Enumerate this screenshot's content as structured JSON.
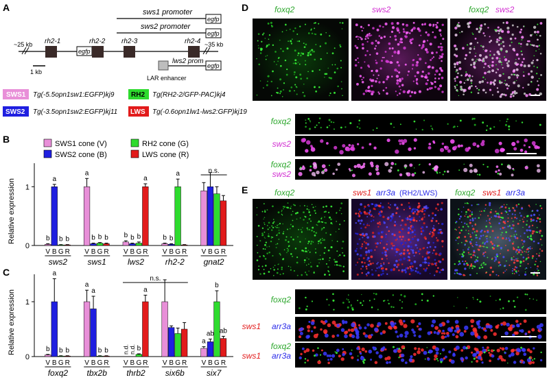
{
  "panel_labels": {
    "A": "A",
    "B": "B",
    "C": "C",
    "D": "D",
    "E": "E"
  },
  "colors": {
    "sws1": "#e88fd8",
    "sws2": "#1f1fe0",
    "rh2": "#2edb2e",
    "lws": "#e21b1b",
    "foxq2": "#2ee02e",
    "sws2_gene": "#e63ce6",
    "arr3a": "#2b2be8"
  },
  "panel_a": {
    "promoters": [
      "sws1 promoter",
      "sws2 promoter"
    ],
    "egfp": "egfp",
    "kb_left": "~25 kb",
    "kb_right": "~35 kb",
    "genes": [
      "rh2-1",
      "rh2-2",
      "rh2-3",
      "rh2-4"
    ],
    "scale": "1 kb",
    "lws2_prom": "lws2 prom",
    "lar": "LAR enhancer",
    "legend": [
      {
        "badge": "SWS1",
        "text": "Tg(-5.5opn1sw1:EGFP)kj9"
      },
      {
        "badge": "RH2",
        "text": "Tg(RH2-2/GFP-PAC)kj4"
      },
      {
        "badge": "SWS2",
        "text": "Tg(-3.5opn1sw2:EGFP)kj11"
      },
      {
        "badge": "LWS",
        "text": "Tg(-0.6opn1lw1-lws2:GFP)kj19"
      }
    ]
  },
  "legend_bc": [
    {
      "label": "SWS1 cone (V)"
    },
    {
      "label": "SWS2 cone (B)"
    },
    {
      "label": "RH2 cone (G)"
    },
    {
      "label": "LWS cone (R)"
    }
  ],
  "axis": {
    "ylabel": "Relative expression",
    "ticks": [
      "0",
      "1"
    ],
    "cells": [
      "V",
      "B",
      "G",
      "R"
    ]
  },
  "chart_data": [
    {
      "type": "bar",
      "ylabel": "Relative expression",
      "ylim": [
        0,
        1.4
      ],
      "cells": [
        "V",
        "B",
        "G",
        "R"
      ],
      "groups": [
        {
          "name": "sws2",
          "values": [
            0.02,
            1.0,
            0.01,
            0.01
          ],
          "errors": [
            0.01,
            0.04,
            0.005,
            0.005
          ],
          "letters": [
            "b",
            "a",
            "b",
            "b"
          ]
        },
        {
          "name": "sws1",
          "values": [
            1.0,
            0.03,
            0.04,
            0.03
          ],
          "errors": [
            0.14,
            0.01,
            0.01,
            0.01
          ],
          "letters": [
            "a",
            "b",
            "b",
            "b"
          ]
        },
        {
          "name": "lws2",
          "values": [
            0.06,
            0.03,
            0.04,
            1.0
          ],
          "errors": [
            0.02,
            0.01,
            0.02,
            0.05
          ],
          "letters": [
            "b",
            "b",
            "b",
            "a"
          ]
        },
        {
          "name": "rh2-2",
          "values": [
            0.03,
            0.02,
            1.0,
            0.01
          ],
          "errors": [
            0.01,
            0.01,
            0.13,
            0.005
          ],
          "letters": [
            "b",
            "b",
            "a",
            ""
          ]
        },
        {
          "name": "gnat2",
          "values": [
            0.93,
            1.0,
            0.88,
            0.76
          ],
          "errors": [
            0.14,
            0.24,
            0.12,
            0.09
          ],
          "letters": [
            "",
            "",
            "",
            ""
          ]
        }
      ],
      "annotations": [
        "n.s."
      ]
    },
    {
      "type": "bar",
      "ylabel": "Relative expression",
      "ylim": [
        0,
        1.5
      ],
      "cells": [
        "V",
        "B",
        "G",
        "R"
      ],
      "groups": [
        {
          "name": "foxq2",
          "values": [
            0.03,
            1.0,
            0.01,
            0.01
          ],
          "errors": [
            0.01,
            0.42,
            0.005,
            0.005
          ],
          "letters": [
            "b",
            "a",
            "b",
            "b"
          ]
        },
        {
          "name": "tbx2b",
          "values": [
            1.0,
            0.87,
            0.01,
            0.01
          ],
          "errors": [
            0.21,
            0.23,
            0.005,
            0.005
          ],
          "letters": [
            "a",
            "a",
            "b",
            "b"
          ]
        },
        {
          "name": "thrb2",
          "values": [
            0.0,
            0.0,
            0.04,
            1.0
          ],
          "errors": [
            0,
            0,
            0.01,
            0.12
          ],
          "letters": [
            "n.d.",
            "n.d.",
            "b",
            "a"
          ]
        },
        {
          "name": "six6b",
          "values": [
            1.0,
            0.53,
            0.42,
            0.5
          ],
          "errors": [
            0.4,
            0.03,
            0.1,
            0.12
          ],
          "letters": [
            "",
            "",
            "",
            ""
          ]
        },
        {
          "name": "six7",
          "values": [
            0.15,
            0.27,
            1.0,
            0.33
          ],
          "errors": [
            0.03,
            0.05,
            0.2,
            0.04
          ],
          "letters": [
            "a",
            "ab",
            "b",
            "ab"
          ]
        }
      ],
      "annotations": [
        "n.s."
      ]
    }
  ],
  "panel_d": {
    "top": [
      "foxq2",
      "sws2",
      "foxq2",
      "sws2"
    ],
    "strip_labels": [
      "foxq2",
      "sws2",
      "foxq2",
      "sws2"
    ]
  },
  "panel_e": {
    "top": [
      "foxq2",
      "sws1",
      "arr3a",
      "(RH2/LWS)",
      "foxq2",
      "sws1",
      "arr3a"
    ],
    "strip_labels": [
      "foxq2",
      "sws1",
      "arr3a",
      "foxq2",
      "sws1",
      "arr3a"
    ]
  }
}
